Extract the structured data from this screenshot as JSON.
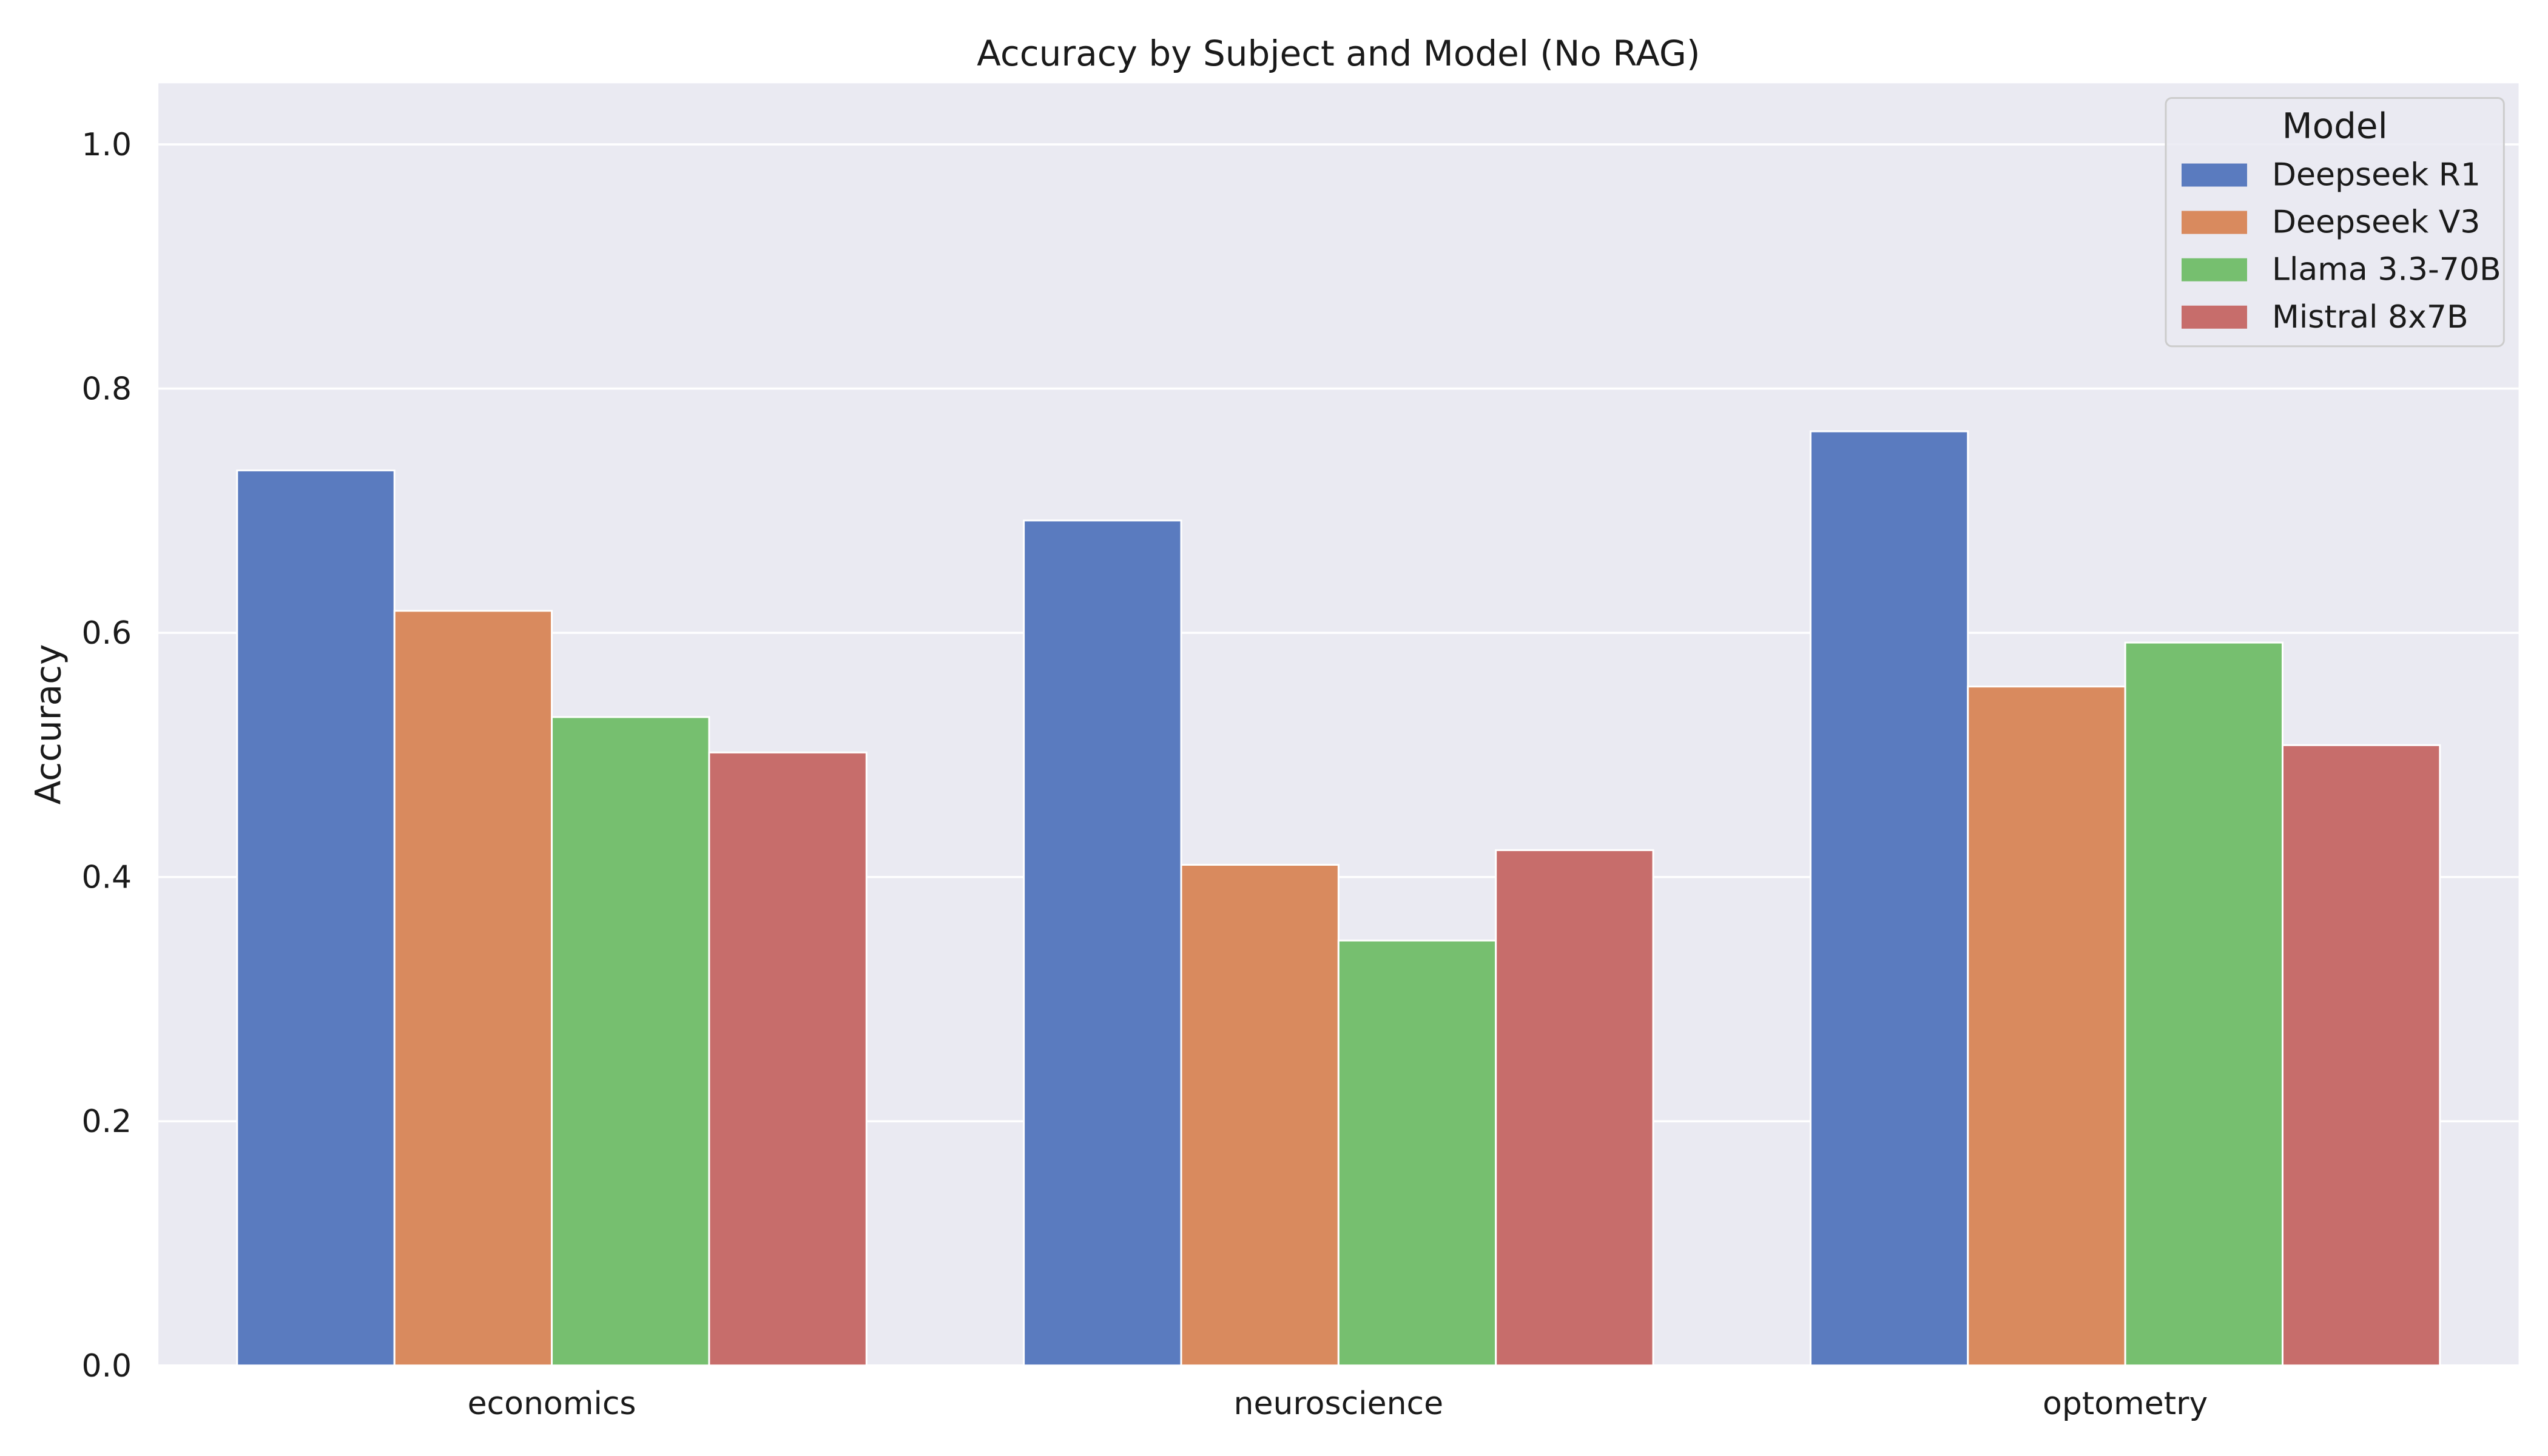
{
  "chart_data": {
    "type": "bar",
    "title": "Accuracy by Subject and Model (No RAG)",
    "xlabel": "",
    "ylabel": "Accuracy",
    "categories": [
      "economics",
      "neuroscience",
      "optometry"
    ],
    "series": [
      {
        "name": "Deepseek R1",
        "color": "#5a7bbf",
        "values": [
          0.733,
          0.692,
          0.765
        ]
      },
      {
        "name": "Deepseek V3",
        "color": "#d98a5e",
        "values": [
          0.618,
          0.41,
          0.556
        ]
      },
      {
        "name": "Llama 3.3-70B",
        "color": "#76bf6f",
        "values": [
          0.531,
          0.348,
          0.592
        ]
      },
      {
        "name": "Mistral 8x7B",
        "color": "#c76d6b",
        "values": [
          0.502,
          0.422,
          0.508
        ]
      }
    ],
    "ylim": [
      0,
      1.05
    ],
    "yticks": [
      "0.0",
      "0.2",
      "0.4",
      "0.6",
      "0.8",
      "1.0"
    ],
    "grid": true,
    "legend": {
      "title": "Model",
      "placement": "top-right"
    },
    "background_color": "#eaeaf2",
    "grid_color": "#ffffff"
  }
}
